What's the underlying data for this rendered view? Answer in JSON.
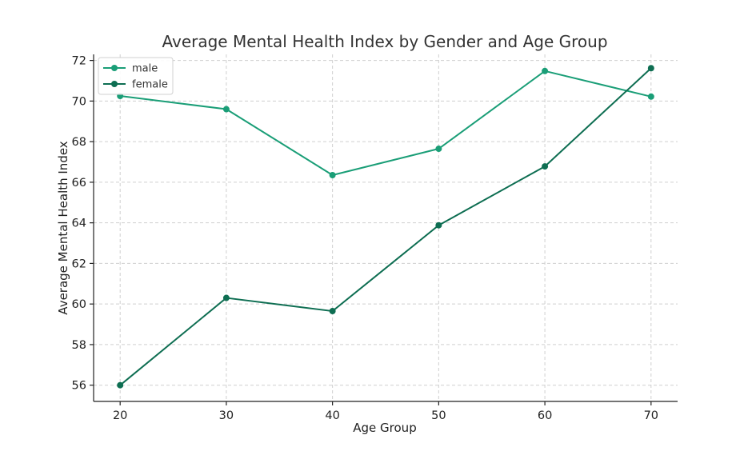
{
  "chart_data": {
    "type": "line",
    "title": "Average Mental Health Index by Gender and Age Group",
    "xlabel": "Age Group",
    "ylabel": "Average Mental Health Index",
    "x": [
      20,
      30,
      40,
      50,
      60,
      70
    ],
    "xlim": [
      17.5,
      72.5
    ],
    "ylim": [
      55.2,
      72.3
    ],
    "yticks": [
      56,
      58,
      60,
      62,
      64,
      66,
      68,
      70,
      72
    ],
    "grid": true,
    "legend_position": "top-left",
    "series": [
      {
        "name": "male",
        "color": "#1a9e77",
        "values": [
          70.25,
          69.6,
          66.35,
          67.65,
          71.48,
          70.22
        ]
      },
      {
        "name": "female",
        "color": "#0e6e52",
        "values": [
          56.0,
          60.3,
          59.65,
          63.88,
          66.78,
          71.62
        ]
      }
    ]
  }
}
